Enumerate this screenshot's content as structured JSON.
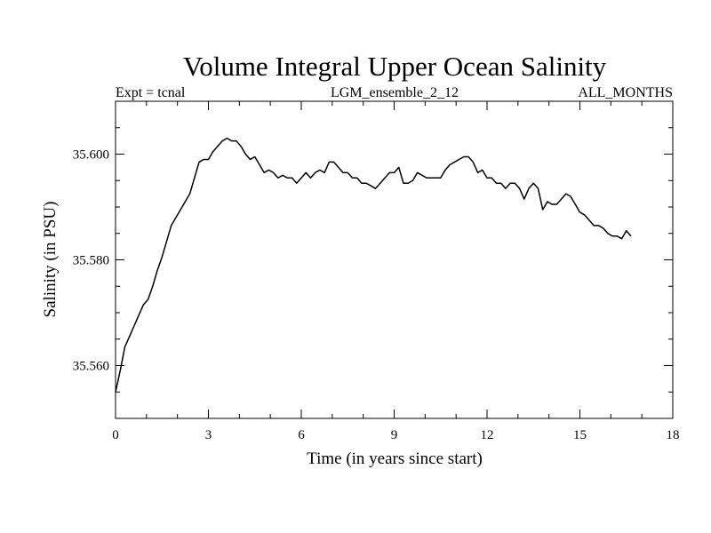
{
  "chart_data": {
    "type": "line",
    "title": "Volume Integral Upper Ocean Salinity",
    "subtitle_left": "Expt = tcnal",
    "subtitle_center": "LGM_ensemble_2_12",
    "subtitle_right": "ALL_MONTHS",
    "xlabel": "Time (in years since start)",
    "ylabel": "Salinity (in PSU)",
    "xlim": [
      0,
      18
    ],
    "ylim": [
      35.55,
      35.61
    ],
    "xticks": [
      0,
      3,
      6,
      9,
      12,
      15,
      18
    ],
    "xtick_labels": [
      "0",
      "3",
      "6",
      "9",
      "12",
      "15",
      "18"
    ],
    "yticks": [
      35.56,
      35.58,
      35.6
    ],
    "ytick_labels": [
      "35.560",
      "35.580",
      "35.600"
    ],
    "grid": false,
    "series": [
      {
        "name": "Salinity",
        "x": [
          0.0,
          0.15,
          0.3,
          0.45,
          0.6,
          0.75,
          0.9,
          1.05,
          1.2,
          1.35,
          1.5,
          1.65,
          1.8,
          1.95,
          2.1,
          2.25,
          2.4,
          2.55,
          2.7,
          2.85,
          3.0,
          3.15,
          3.3,
          3.45,
          3.6,
          3.75,
          3.9,
          4.05,
          4.2,
          4.35,
          4.5,
          4.65,
          4.8,
          4.95,
          5.1,
          5.25,
          5.4,
          5.55,
          5.7,
          5.85,
          6.0,
          6.15,
          6.3,
          6.45,
          6.6,
          6.75,
          6.9,
          7.05,
          7.2,
          7.35,
          7.5,
          7.65,
          7.8,
          7.95,
          8.1,
          8.25,
          8.4,
          8.55,
          8.7,
          8.85,
          9.0,
          9.15,
          9.3,
          9.45,
          9.6,
          9.75,
          9.9,
          10.05,
          10.2,
          10.35,
          10.5,
          10.65,
          10.8,
          10.95,
          11.1,
          11.25,
          11.4,
          11.55,
          11.7,
          11.85,
          12.0,
          12.15,
          12.3,
          12.45,
          12.6,
          12.75,
          12.9,
          13.05,
          13.2,
          13.35,
          13.5,
          13.65,
          13.8,
          13.95,
          14.1,
          14.25,
          14.4,
          14.55,
          14.7,
          14.85,
          15.0,
          15.15,
          15.3,
          15.45,
          15.6,
          15.75,
          15.9,
          16.05,
          16.2,
          16.35,
          16.5,
          16.65
        ],
        "y": [
          35.555,
          35.559,
          35.5635,
          35.5655,
          35.5675,
          35.5695,
          35.5715,
          35.5725,
          35.575,
          35.578,
          35.5805,
          35.5835,
          35.5865,
          35.588,
          35.5895,
          35.591,
          35.5925,
          35.5955,
          35.5985,
          35.599,
          35.599,
          35.6005,
          35.6015,
          35.6025,
          35.603,
          35.6025,
          35.6025,
          35.6015,
          35.6,
          35.599,
          35.5995,
          35.598,
          35.5965,
          35.597,
          35.5965,
          35.5955,
          35.596,
          35.5955,
          35.5955,
          35.5945,
          35.5955,
          35.5965,
          35.5955,
          35.5965,
          35.597,
          35.5965,
          35.5985,
          35.5985,
          35.5975,
          35.5965,
          35.5965,
          35.5955,
          35.5955,
          35.5945,
          35.5945,
          35.594,
          35.5935,
          35.5945,
          35.5955,
          35.5965,
          35.5965,
          35.5975,
          35.5945,
          35.5945,
          35.595,
          35.5965,
          35.596,
          35.5955,
          35.5955,
          35.5955,
          35.5955,
          35.597,
          35.598,
          35.5985,
          35.599,
          35.5995,
          35.5995,
          35.5985,
          35.5965,
          35.597,
          35.5955,
          35.5955,
          35.5945,
          35.5945,
          35.5935,
          35.5945,
          35.5945,
          35.5935,
          35.5915,
          35.5935,
          35.5945,
          35.5935,
          35.5895,
          35.591,
          35.5905,
          35.5905,
          35.5915,
          35.5925,
          35.592,
          35.5905,
          35.589,
          35.5885,
          35.5875,
          35.5865,
          35.5865,
          35.586,
          35.585,
          35.5845,
          35.5845,
          35.584,
          35.5855,
          35.5845
        ]
      }
    ]
  }
}
